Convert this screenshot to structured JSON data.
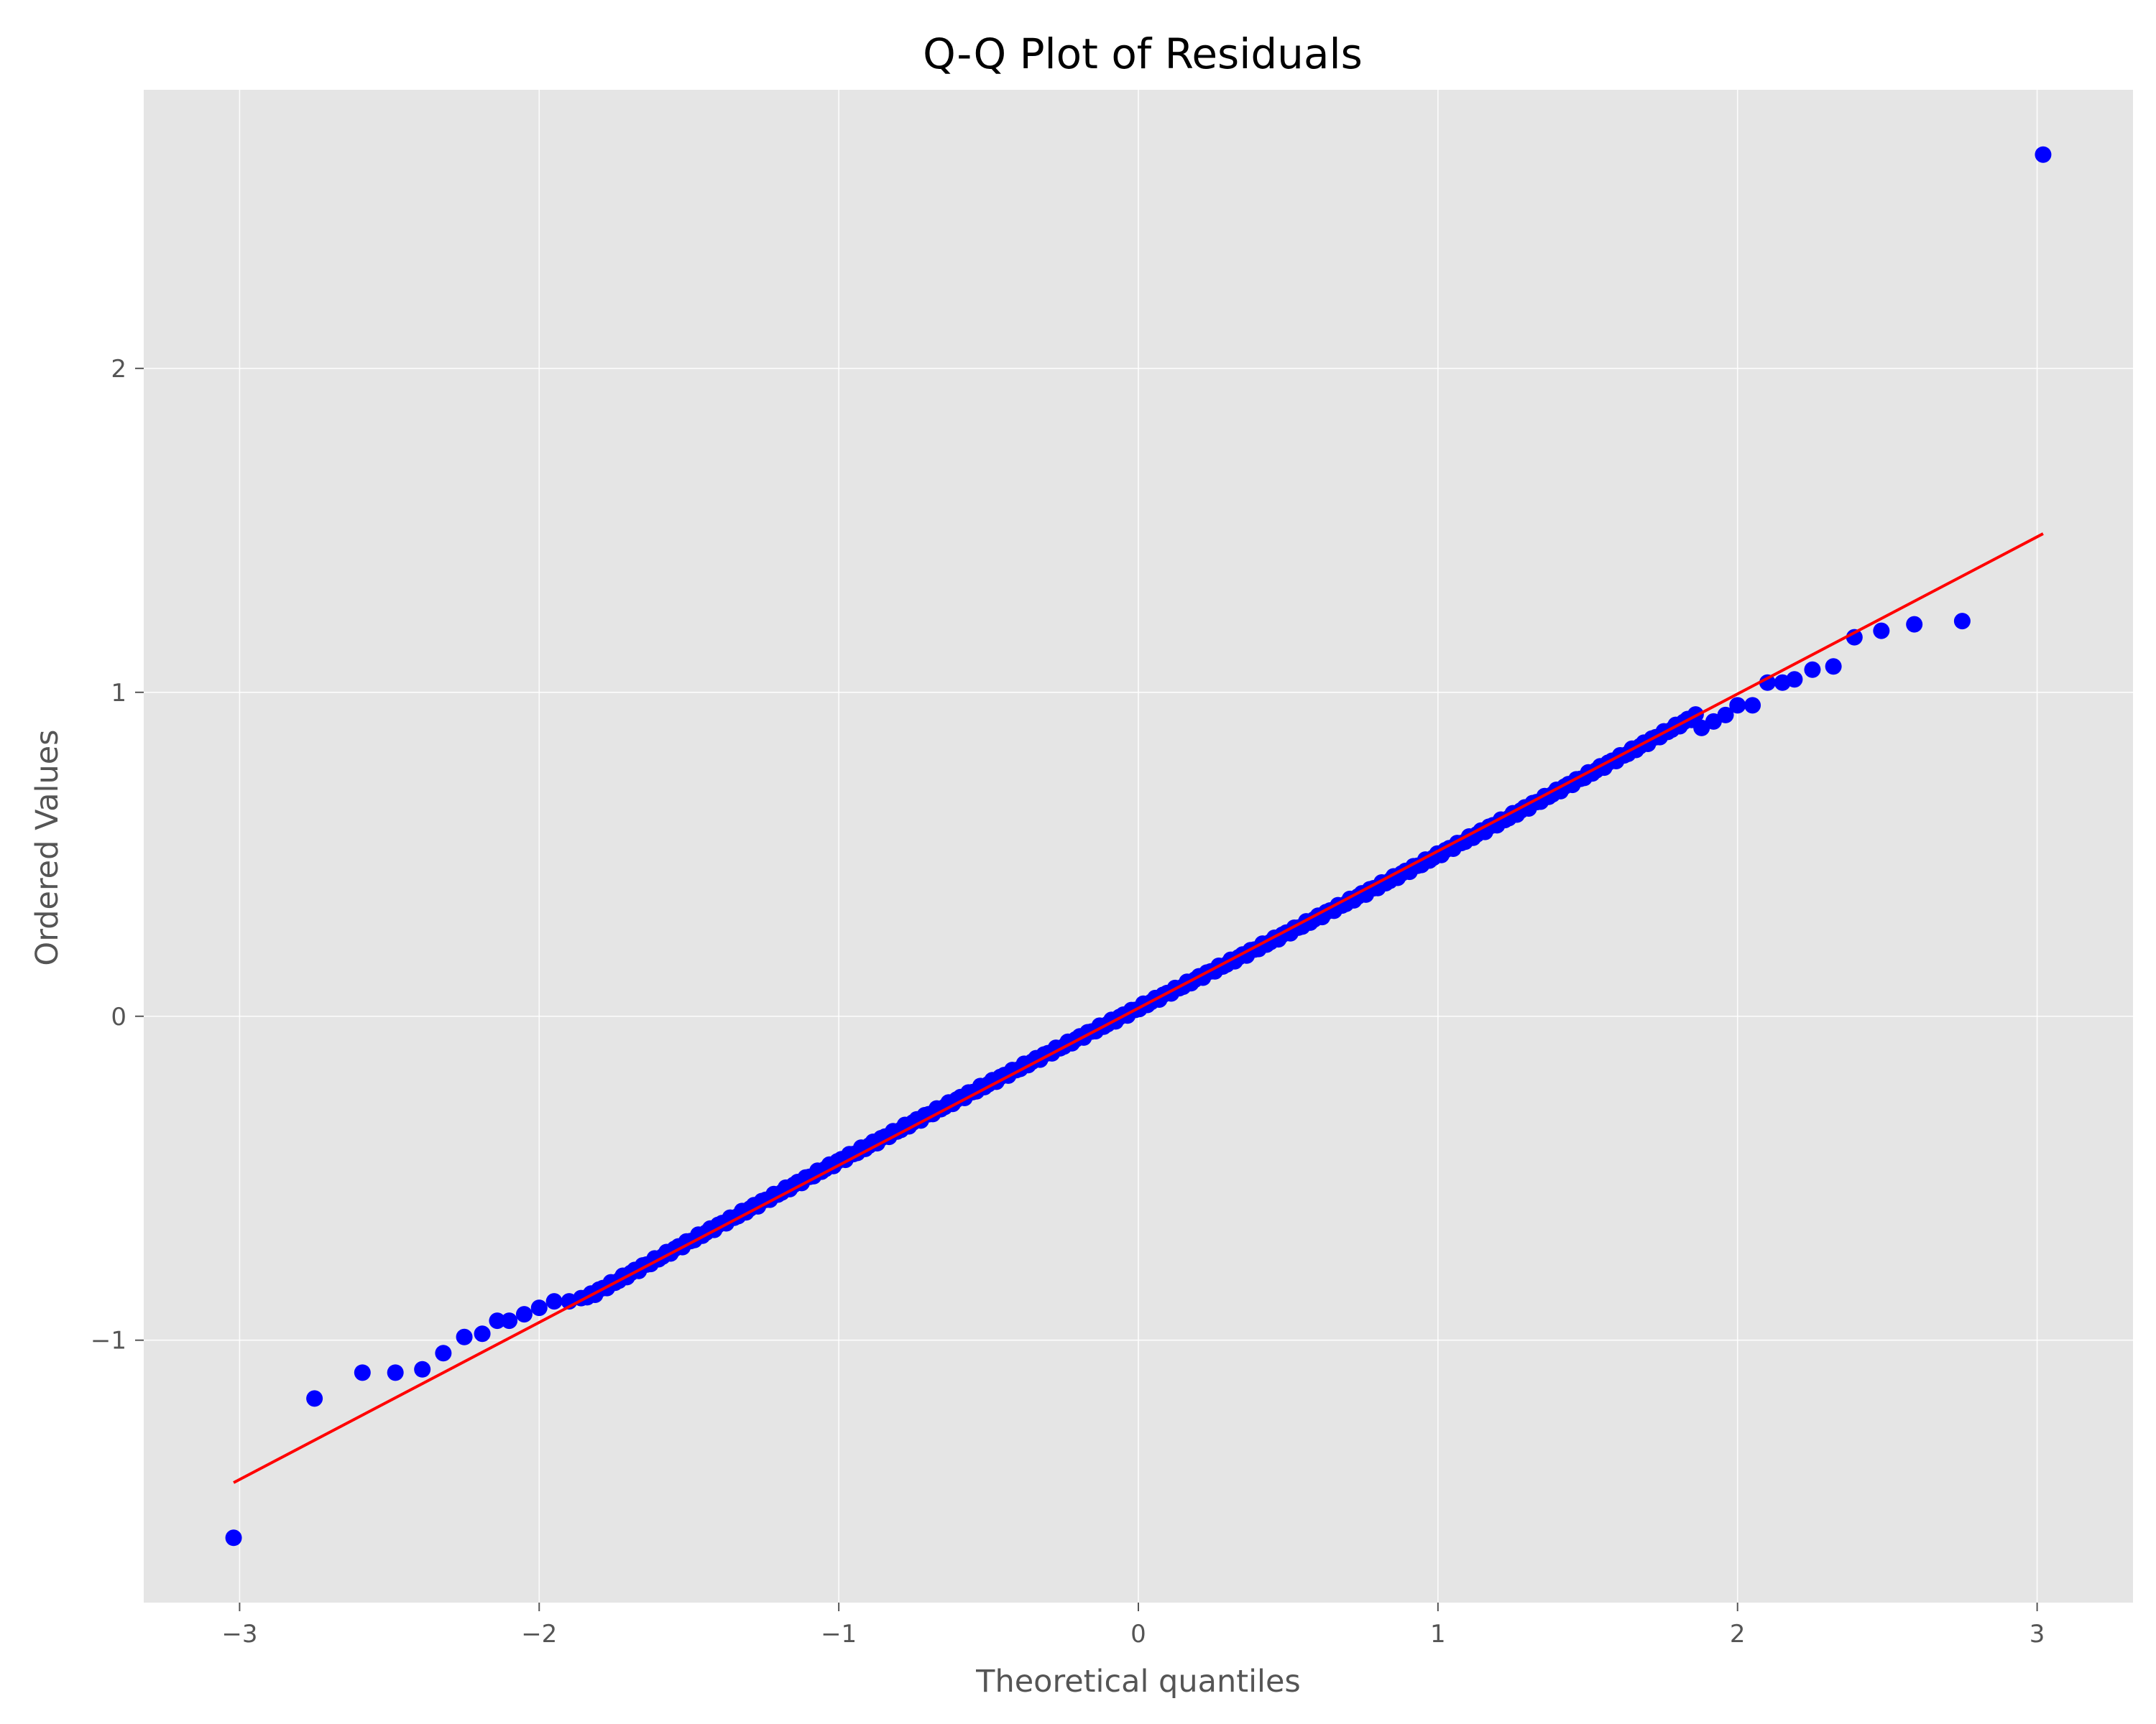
{
  "chart_data": {
    "type": "scatter",
    "title": "Q-Q Plot of Residuals",
    "xlabel": "Theoretical quantiles",
    "ylabel": "Ordered Values",
    "xlim": [
      -3.32,
      3.32
    ],
    "ylim": [
      -1.81,
      2.86
    ],
    "xticks": [
      -3,
      -2,
      -1,
      0,
      1,
      2,
      3
    ],
    "xtick_labels": [
      "−3",
      "−2",
      "−1",
      "0",
      "1",
      "2",
      "3"
    ],
    "yticks": [
      -1,
      0,
      1,
      2
    ],
    "ytick_labels": [
      "−1",
      "0",
      "1",
      "2"
    ],
    "grid": true,
    "background": "#e5e5e5",
    "point_color": "#0000ff",
    "line_color": "#ff0000",
    "fit_line": {
      "slope": 0.485,
      "intercept": 0.025,
      "x_range": [
        -3.02,
        3.02
      ]
    },
    "tail_points": [
      {
        "x": -3.02,
        "y": -1.61
      },
      {
        "x": -2.75,
        "y": -1.18
      },
      {
        "x": -2.59,
        "y": -1.1
      },
      {
        "x": -2.48,
        "y": -1.1
      },
      {
        "x": -2.39,
        "y": -1.09
      },
      {
        "x": -2.32,
        "y": -1.04
      },
      {
        "x": -2.25,
        "y": -0.99
      },
      {
        "x": -2.19,
        "y": -0.98
      },
      {
        "x": -2.14,
        "y": -0.94
      },
      {
        "x": -2.1,
        "y": -0.94
      },
      {
        "x": -2.05,
        "y": -0.92
      },
      {
        "x": -2.0,
        "y": -0.9
      },
      {
        "x": -1.95,
        "y": -0.88
      },
      {
        "x": -1.9,
        "y": -0.88
      },
      {
        "x": -1.86,
        "y": -0.87
      },
      {
        "x": 1.88,
        "y": 0.89
      },
      {
        "x": 1.92,
        "y": 0.91
      },
      {
        "x": 1.96,
        "y": 0.93
      },
      {
        "x": 2.0,
        "y": 0.96
      },
      {
        "x": 2.05,
        "y": 0.96
      },
      {
        "x": 2.1,
        "y": 1.03
      },
      {
        "x": 2.15,
        "y": 1.03
      },
      {
        "x": 2.19,
        "y": 1.04
      },
      {
        "x": 2.25,
        "y": 1.07
      },
      {
        "x": 2.32,
        "y": 1.08
      },
      {
        "x": 2.39,
        "y": 1.17
      },
      {
        "x": 2.48,
        "y": 1.19
      },
      {
        "x": 2.59,
        "y": 1.21
      },
      {
        "x": 2.75,
        "y": 1.22
      },
      {
        "x": 3.02,
        "y": 2.66
      }
    ],
    "body_points": {
      "n": 280,
      "x_range": [
        -1.84,
        1.86
      ],
      "note_shape": "slightly S-shaped; points lie on fit line in the middle, slightly above near -1.8 and slightly below near 1.8"
    }
  }
}
